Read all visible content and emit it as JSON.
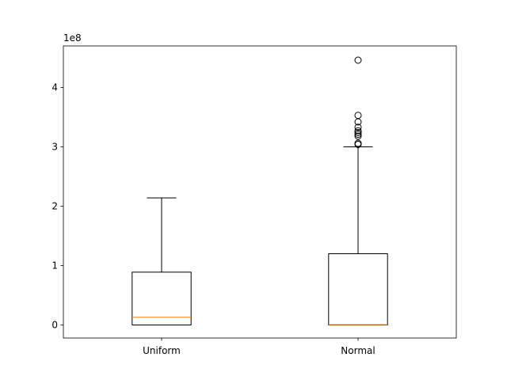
{
  "chart_data": {
    "type": "box",
    "categories": [
      "Uniform",
      "Normal"
    ],
    "y_offset_label": "1e8",
    "y_scale": 100000000,
    "ylim": [
      -0.22,
      4.7
    ],
    "yticks": [
      0,
      1,
      2,
      3,
      4
    ],
    "ytick_labels": [
      "0",
      "1",
      "2",
      "3",
      "4"
    ],
    "grid": false,
    "colors": {
      "box": "#000000",
      "median": "#ff7f0e",
      "flier": "#000000"
    },
    "boxes": [
      {
        "name": "Uniform",
        "whisker_low": 0.0,
        "q1": 0.0,
        "median": 0.13,
        "q3": 0.89,
        "whisker_high": 2.14,
        "fliers": []
      },
      {
        "name": "Normal",
        "whisker_low": 0.0,
        "q1": 0.0,
        "median": 0.005,
        "q3": 1.2,
        "whisker_high": 3.0,
        "fliers": [
          4.46,
          3.53,
          3.42,
          3.33,
          3.27,
          3.24,
          3.21,
          3.18,
          3.06,
          3.04
        ]
      }
    ]
  }
}
